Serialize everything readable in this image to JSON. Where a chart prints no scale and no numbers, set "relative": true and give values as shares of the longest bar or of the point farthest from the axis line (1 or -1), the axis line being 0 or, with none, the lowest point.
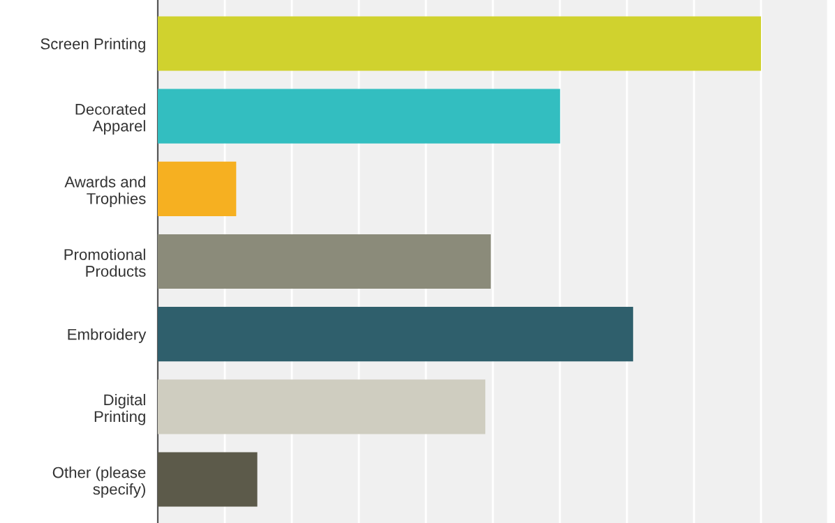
{
  "chart_data": {
    "type": "bar",
    "orientation": "horizontal",
    "relative": true,
    "grid": "x",
    "categories": [
      "Screen Printing",
      "Decorated\nApparel",
      "Awards and\nTrophies",
      "Promotional\nProducts",
      "Embroidery",
      "Digital\nPrinting",
      "Other (please\nspecify)"
    ],
    "values": [
      1,
      0.667,
      0.13,
      0.552,
      0.788,
      0.543,
      0.165
    ],
    "colors": [
      "#d0d22e",
      "#33bec0",
      "#f6b021",
      "#8b8b7a",
      "#2f5f6c",
      "#cfcdc0",
      "#5c5a4a"
    ]
  }
}
